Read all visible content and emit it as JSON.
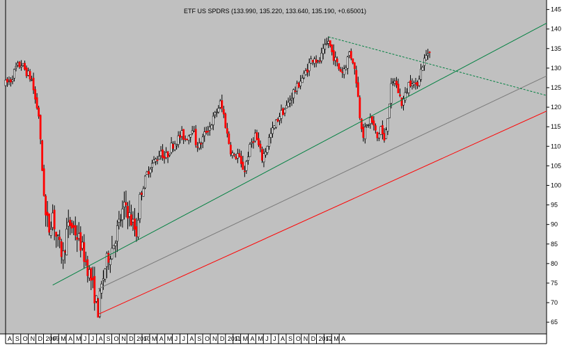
{
  "chart_data": {
    "type": "candlestick",
    "title": "ETF US SPDRS (133.990, 135.220, 133.640, 135.190, +0.65001)",
    "colors": {
      "background": "#c0c0c0",
      "up_body": "#ffffff",
      "down_body": "#ff0000",
      "wick": "#000000",
      "green_line": "#008040",
      "red_line": "#ff0000",
      "mid_line": "#7a7a7a",
      "dashed_line": "#008040"
    },
    "ylim": [
      62,
      146
    ],
    "y_ticks": [
      65,
      70,
      75,
      80,
      85,
      90,
      95,
      100,
      105,
      110,
      115,
      120,
      125,
      130,
      135,
      140,
      145
    ],
    "x_month_labels": [
      "A",
      "S",
      "O",
      "N",
      "D",
      "2009",
      "F",
      "M",
      "A",
      "M",
      "J",
      "J",
      "A",
      "S",
      "O",
      "N",
      "D",
      "2010",
      "F",
      "M",
      "A",
      "M",
      "J",
      "J",
      "A",
      "S",
      "O",
      "N",
      "D",
      "2011",
      "F",
      "M",
      "A",
      "M",
      "J",
      "J",
      "A",
      "S",
      "O",
      "N",
      "D",
      "2012",
      "F",
      "M",
      "A"
    ],
    "price_path": [
      [
        0,
        126
      ],
      [
        3,
        127
      ],
      [
        6,
        130
      ],
      [
        9,
        131
      ],
      [
        12,
        129
      ],
      [
        15,
        127
      ],
      [
        17,
        122
      ],
      [
        19,
        118
      ],
      [
        21,
        104
      ],
      [
        23,
        92
      ],
      [
        25,
        89
      ],
      [
        27,
        93
      ],
      [
        29,
        87
      ],
      [
        31,
        84
      ],
      [
        33,
        82
      ],
      [
        35,
        88
      ],
      [
        37,
        90
      ],
      [
        39,
        89
      ],
      [
        41,
        87
      ],
      [
        43,
        85
      ],
      [
        45,
        82
      ],
      [
        47,
        79
      ],
      [
        49,
        76
      ],
      [
        51,
        72
      ],
      [
        53,
        68
      ],
      [
        55,
        74
      ],
      [
        57,
        79
      ],
      [
        59,
        82
      ],
      [
        61,
        84
      ],
      [
        63,
        87
      ],
      [
        65,
        90
      ],
      [
        67,
        93
      ],
      [
        69,
        95
      ],
      [
        71,
        92
      ],
      [
        73,
        90
      ],
      [
        75,
        88
      ],
      [
        77,
        97
      ],
      [
        79,
        100
      ],
      [
        81,
        103
      ],
      [
        83,
        105
      ],
      [
        85,
        106
      ],
      [
        87,
        107
      ],
      [
        89,
        109
      ],
      [
        91,
        107
      ],
      [
        93,
        108
      ],
      [
        95,
        110
      ],
      [
        97,
        111
      ],
      [
        99,
        112
      ],
      [
        101,
        113
      ],
      [
        103,
        112
      ],
      [
        105,
        113
      ],
      [
        107,
        115
      ],
      [
        109,
        111
      ],
      [
        111,
        110
      ],
      [
        113,
        112
      ],
      [
        115,
        114
      ],
      [
        117,
        115
      ],
      [
        119,
        117
      ],
      [
        121,
        119
      ],
      [
        123,
        121
      ],
      [
        125,
        118
      ],
      [
        127,
        113
      ],
      [
        129,
        109
      ],
      [
        131,
        107
      ],
      [
        133,
        108
      ],
      [
        135,
        105
      ],
      [
        137,
        104
      ],
      [
        139,
        108
      ],
      [
        141,
        111
      ],
      [
        143,
        113
      ],
      [
        145,
        110
      ],
      [
        147,
        107
      ],
      [
        149,
        109
      ],
      [
        151,
        112
      ],
      [
        153,
        114
      ],
      [
        155,
        116
      ],
      [
        157,
        118
      ],
      [
        159,
        119
      ],
      [
        161,
        120
      ],
      [
        163,
        122
      ],
      [
        165,
        124
      ],
      [
        167,
        125
      ],
      [
        169,
        127
      ],
      [
        171,
        128
      ],
      [
        173,
        130
      ],
      [
        175,
        132
      ],
      [
        177,
        133
      ],
      [
        179,
        131
      ],
      [
        181,
        133
      ],
      [
        183,
        135
      ],
      [
        185,
        137
      ],
      [
        187,
        134
      ],
      [
        189,
        132
      ],
      [
        191,
        130
      ],
      [
        193,
        129
      ],
      [
        195,
        131
      ],
      [
        197,
        134
      ],
      [
        199,
        132
      ],
      [
        201,
        127
      ],
      [
        203,
        118
      ],
      [
        205,
        113
      ],
      [
        207,
        115
      ],
      [
        209,
        117
      ],
      [
        211,
        115
      ],
      [
        213,
        112
      ],
      [
        215,
        115
      ],
      [
        217,
        111
      ],
      [
        219,
        118
      ],
      [
        221,
        125
      ],
      [
        223,
        127
      ],
      [
        225,
        124
      ],
      [
        227,
        121
      ],
      [
        229,
        123
      ],
      [
        231,
        126
      ],
      [
        233,
        127
      ],
      [
        235,
        125
      ],
      [
        237,
        128
      ],
      [
        239,
        131
      ],
      [
        241,
        133
      ],
      [
        243,
        135
      ]
    ],
    "lines": {
      "green": [
        [
          27,
          74.5
        ],
        [
          310,
          141.5
        ]
      ],
      "mid": [
        [
          53,
          73.5
        ],
        [
          310,
          128
        ]
      ],
      "red": [
        [
          53,
          67
        ],
        [
          310,
          119
        ]
      ],
      "dashed": [
        [
          185,
          138
        ],
        [
          310,
          123
        ]
      ]
    }
  }
}
